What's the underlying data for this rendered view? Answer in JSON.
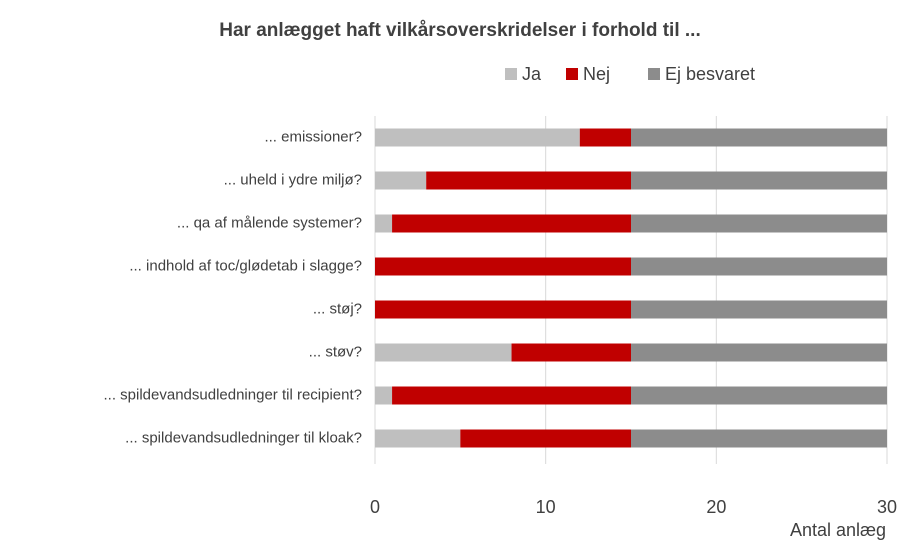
{
  "chart_data": {
    "type": "stacked-bar-horizontal",
    "title": "Har anlægget haft vilkårsoverskridelser i forhold til ...",
    "x_label": "Antal anlæg",
    "categories": [
      "... emissioner?",
      "... uheld i ydre miljø?",
      "... qa af målende systemer?",
      "... indhold af toc/glødetab i slagge?",
      "... støj?",
      "... støv?",
      "... spildevandsudledninger til recipient?",
      "... spildevandsudledninger til kloak?"
    ],
    "series": [
      {
        "name": "Ja",
        "color": "#bfbfbf",
        "values": [
          12,
          3,
          1,
          0,
          0,
          8,
          1,
          5
        ]
      },
      {
        "name": "Nej",
        "color": "#c00000",
        "values": [
          3,
          12,
          14,
          15,
          15,
          7,
          14,
          10
        ]
      },
      {
        "name": "Ej besvaret",
        "color": "#8c8c8c",
        "values": [
          15,
          15,
          15,
          15,
          15,
          15,
          15,
          15
        ]
      }
    ],
    "xlim": [
      0,
      30
    ],
    "xticks": [
      0,
      10,
      20,
      30
    ],
    "grid": true,
    "legend": "top"
  }
}
